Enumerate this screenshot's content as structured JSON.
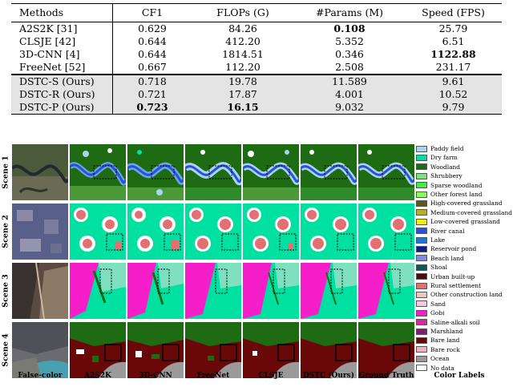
{
  "table": {
    "headers": [
      "Methods",
      "CF1",
      "FLOPs (G)",
      "#Params (M)",
      "Speed (FPS)"
    ],
    "rows": [
      [
        "A2S2K [31]",
        "0.629",
        "84.26",
        "0.108",
        "25.79"
      ],
      [
        "CLSJE [42]",
        "0.644",
        "412.20",
        "5.352",
        "6.51"
      ],
      [
        "3D-CNN [4]",
        "0.644",
        "1814.51",
        "0.346",
        "1122.88"
      ],
      [
        "FreeNet [52]",
        "0.667",
        "112.20",
        "2.508",
        "231.17"
      ],
      [
        "DSTC-S (Ours)",
        "0.718",
        "19.78",
        "11.589",
        "9.61"
      ],
      [
        "DSTC-R (Ours)",
        "0.721",
        "17.87",
        "4.001",
        "10.52"
      ],
      [
        "DSTC-P (Ours)",
        "0.723",
        "16.15",
        "9.032",
        "9.79"
      ]
    ]
  },
  "figure": {
    "scenes": [
      "Scene 1",
      "Scene 2",
      "Scene 3",
      "Scene 4"
    ],
    "columns": [
      "False-color",
      "A2S2K",
      "3D-CNN",
      "FreeNet",
      "CLSJE",
      "DSTC (Ours)",
      "Ground Truth",
      "Color Labels"
    ],
    "legend": [
      {
        "label": "Paddy field",
        "color": "#a9d4f0"
      },
      {
        "label": "Dry farm",
        "color": "#00e0a0"
      },
      {
        "label": "Woodland",
        "color": "#1f6b14"
      },
      {
        "label": "Shrubbery",
        "color": "#7fe07f"
      },
      {
        "label": "Sparse woodland",
        "color": "#44ee44"
      },
      {
        "label": "Other forest land",
        "color": "#88ff55"
      },
      {
        "label": "High-covered grassland",
        "color": "#5c5a1a"
      },
      {
        "label": "Medium-covered grassland",
        "color": "#b8b020"
      },
      {
        "label": "Low-covered grassland",
        "color": "#f4f000"
      },
      {
        "label": "River canal",
        "color": "#2a52d8"
      },
      {
        "label": "Lake",
        "color": "#1877d8"
      },
      {
        "label": "Reservoir pond",
        "color": "#0b1f88"
      },
      {
        "label": "Beach land",
        "color": "#7c8ce0"
      },
      {
        "label": "Shoal",
        "color": "#0b5a55"
      },
      {
        "label": "Urban built-up",
        "color": "#4a0c10"
      },
      {
        "label": "Rural settlement",
        "color": "#e27070"
      },
      {
        "label": "Other construction land",
        "color": "#f2c4c4"
      },
      {
        "label": "Sand",
        "color": "#f8c8dc"
      },
      {
        "label": "Gobi",
        "color": "#f51ec8"
      },
      {
        "label": "Saline-alkali soil",
        "color": "#d62aa4"
      },
      {
        "label": "Marshland",
        "color": "#7a1e78"
      },
      {
        "label": "Bare land",
        "color": "#6a0808"
      },
      {
        "label": "Bare rock",
        "color": "#f2b4c0"
      },
      {
        "label": "Ocean",
        "color": "#9a9a9a"
      },
      {
        "label": "No data",
        "color": "#ffffff"
      }
    ]
  }
}
